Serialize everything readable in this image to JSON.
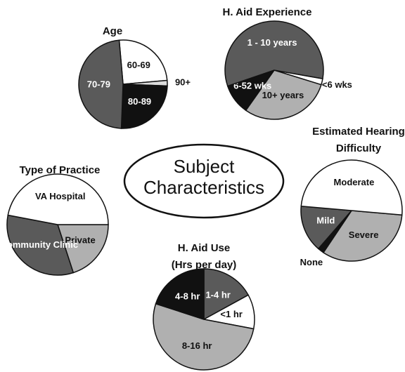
{
  "center_label": "Subject Characteristics",
  "chart_data": [
    {
      "type": "pie",
      "title": "Age",
      "categories": [
        "60-69",
        "90+",
        "80-89",
        "70-79"
      ],
      "values": [
        25,
        2,
        25,
        48
      ],
      "colors": [
        "#ffffff",
        "#dddddd",
        "#111111",
        "#5a5a5a"
      ]
    },
    {
      "type": "pie",
      "title": "H. Aid Experience",
      "categories": [
        "<6 wks",
        "10+ years",
        "6-52 wks",
        "1 - 10 years"
      ],
      "values": [
        2,
        30,
        10,
        58
      ],
      "colors": [
        "#ffffff",
        "#b0b0b0",
        "#111111",
        "#5a5a5a"
      ]
    },
    {
      "type": "pie",
      "title": "Type of Practice",
      "categories": [
        "Private",
        "Community Clinic",
        "VA Hospital"
      ],
      "values": [
        20,
        33,
        47
      ],
      "colors": [
        "#b0b0b0",
        "#5a5a5a",
        "#ffffff"
      ]
    },
    {
      "type": "pie",
      "title": "Estimated Hearing Difficulty",
      "categories": [
        "Severe",
        "None",
        "Mild",
        "Moderate"
      ],
      "values": [
        33,
        2,
        15,
        50
      ],
      "colors": [
        "#b0b0b0",
        "#111111",
        "#5a5a5a",
        "#ffffff"
      ]
    },
    {
      "type": "pie",
      "title": "H. Aid Use",
      "subtitle": "(Hrs per day)",
      "categories": [
        "1-4 hr",
        "<1 hr",
        "8-16 hr",
        "4-8 hr"
      ],
      "values": [
        17,
        11,
        52,
        20
      ],
      "colors": [
        "#5a5a5a",
        "#ffffff",
        "#b0b0b0",
        "#111111"
      ]
    }
  ]
}
